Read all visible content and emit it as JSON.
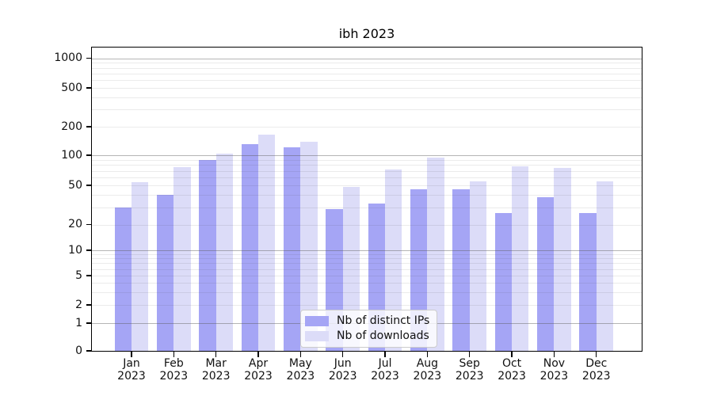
{
  "chart_data": {
    "type": "bar",
    "title": "ibh 2023",
    "x_month_labels": [
      "Jan",
      "Feb",
      "Mar",
      "Apr",
      "May",
      "Jun",
      "Jul",
      "Aug",
      "Sep",
      "Oct",
      "Nov",
      "Dec"
    ],
    "x_year_label": "2023",
    "series": [
      {
        "name": "Nb of distinct IPs",
        "color": "#a5a5f5",
        "values": [
          30,
          40,
          89,
          130,
          121,
          29,
          33,
          46,
          46,
          26,
          38,
          26
        ]
      },
      {
        "name": "Nb of downloads",
        "color": "#dcdcf8",
        "values": [
          54,
          76,
          103,
          164,
          139,
          48,
          72,
          94,
          55,
          78,
          75,
          55
        ]
      }
    ],
    "yaxis": {
      "scale": "symlog",
      "tick_values": [
        0,
        1,
        2,
        5,
        10,
        20,
        50,
        100,
        200,
        500,
        1000
      ],
      "tick_labels": [
        "0",
        "1",
        "2",
        "5",
        "10",
        "20",
        "50",
        "100",
        "200",
        "500",
        "1000"
      ],
      "major_grid_values": [
        1,
        10,
        100,
        1000
      ],
      "ylim": [
        0,
        1300
      ]
    },
    "grid": true,
    "legend": {
      "position": "lower-center",
      "entries": [
        "Nb of distinct IPs",
        "Nb of downloads"
      ]
    }
  },
  "colors": {
    "bar_distinct_ips": "#a5a5f5",
    "bar_downloads": "#dcdcf8",
    "grid_major": "#b3b3b3",
    "grid_minor": "#e7e7e7",
    "axis": "#000000",
    "text": "#111111",
    "background": "#ffffff"
  }
}
